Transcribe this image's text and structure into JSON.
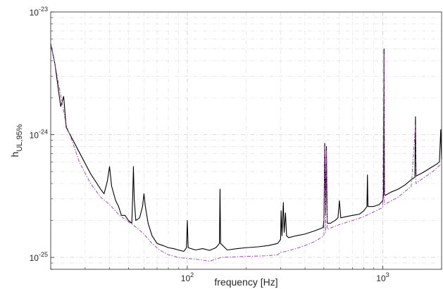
{
  "chart_data": {
    "type": "line",
    "title": "",
    "xlabel": "frequency [Hz]",
    "ylabel_main": "h",
    "ylabel_sub": "UL,95%",
    "xscale": "log",
    "yscale": "log",
    "xlim": [
      20,
      2000
    ],
    "ylim": [
      8e-26,
      1e-23
    ],
    "grid": true,
    "legend": "none",
    "x_ticks": [
      {
        "value": 100,
        "base": "10",
        "exp": "2"
      },
      {
        "value": 1000,
        "base": "10",
        "exp": "3"
      }
    ],
    "y_ticks": [
      {
        "value": 1e-25,
        "base": "10",
        "exp": "-25"
      },
      {
        "value": 1e-24,
        "base": "10",
        "exp": "-24"
      },
      {
        "value": 1e-23,
        "base": "10",
        "exp": "-23"
      }
    ],
    "series": [
      {
        "style": "solid",
        "color": "#000000",
        "points": [
          [
            20,
            5.5e-24
          ],
          [
            21,
            3.8e-24
          ],
          [
            22.5,
            1.7e-24
          ],
          [
            23.3,
            2.05e-24
          ],
          [
            24,
            1.15e-24
          ],
          [
            28,
            7.2e-25
          ],
          [
            32,
            4.8e-25
          ],
          [
            36,
            3.6e-25
          ],
          [
            37.5,
            3.3e-25
          ],
          [
            39,
            4.2e-25
          ],
          [
            40,
            5.5e-25
          ],
          [
            41,
            3.8e-25
          ],
          [
            43,
            2.9e-25
          ],
          [
            44.5,
            2.6e-25
          ],
          [
            46,
            2.2e-25
          ],
          [
            48,
            2.2e-25
          ],
          [
            50,
            2e-25
          ],
          [
            52,
            1.9e-25
          ],
          [
            52.5,
            3e-25
          ],
          [
            53,
            5.5e-25
          ],
          [
            53.5,
            3e-25
          ],
          [
            54.5,
            2e-25
          ],
          [
            57,
            2.1e-25
          ],
          [
            59,
            2.6e-25
          ],
          [
            60,
            3.3e-25
          ],
          [
            61,
            2.6e-25
          ],
          [
            63,
            1.9e-25
          ],
          [
            66,
            1.5e-25
          ],
          [
            70,
            1.3e-25
          ],
          [
            75,
            1.25e-25
          ],
          [
            80,
            1.2e-25
          ],
          [
            85,
            1.18e-25
          ],
          [
            90,
            1.15e-25
          ],
          [
            96,
            1.12e-25
          ],
          [
            99,
            1.2e-25
          ],
          [
            100,
            2e-25
          ],
          [
            101,
            1.2e-25
          ],
          [
            110,
            1.15e-25
          ],
          [
            120,
            1.18e-25
          ],
          [
            130,
            1.14e-25
          ],
          [
            140,
            1.2e-25
          ],
          [
            146,
            1.3e-25
          ],
          [
            147,
            3.6e-25
          ],
          [
            148,
            1.3e-25
          ],
          [
            160,
            1.15e-25
          ],
          [
            180,
            1.18e-25
          ],
          [
            200,
            1.2e-25
          ],
          [
            230,
            1.22e-25
          ],
          [
            260,
            1.25e-25
          ],
          [
            290,
            1.3e-25
          ],
          [
            300,
            1.4e-25
          ],
          [
            302,
            2.4e-25
          ],
          [
            305,
            1.5e-25
          ],
          [
            310,
            2.8e-25
          ],
          [
            313,
            1.6e-25
          ],
          [
            318,
            2.3e-25
          ],
          [
            322,
            1.5e-25
          ],
          [
            330,
            1.45e-25
          ],
          [
            360,
            1.5e-25
          ],
          [
            400,
            1.55e-25
          ],
          [
            450,
            1.65e-25
          ],
          [
            495,
            1.75e-25
          ],
          [
            500,
            2e-25
          ],
          [
            505,
            8.5e-25
          ],
          [
            510,
            2.2e-25
          ],
          [
            515,
            8e-25
          ],
          [
            520,
            1.9e-25
          ],
          [
            540,
            1.9e-25
          ],
          [
            570,
            2e-25
          ],
          [
            590,
            2.1e-25
          ],
          [
            600,
            2.9e-25
          ],
          [
            610,
            2.1e-25
          ],
          [
            650,
            2.15e-25
          ],
          [
            700,
            2.2e-25
          ],
          [
            760,
            2.25e-25
          ],
          [
            800,
            2.4e-25
          ],
          [
            830,
            2.6e-25
          ],
          [
            835,
            4.7e-25
          ],
          [
            840,
            2.6e-25
          ],
          [
            900,
            2.6e-25
          ],
          [
            960,
            2.7e-25
          ],
          [
            1000,
            2.9e-25
          ],
          [
            1010,
            3.3e-25
          ],
          [
            1015,
            5e-24
          ],
          [
            1020,
            3.3e-25
          ],
          [
            1030,
            3.2e-25
          ],
          [
            1100,
            3.4e-25
          ],
          [
            1200,
            3.6e-25
          ],
          [
            1300,
            3.9e-25
          ],
          [
            1400,
            4.3e-25
          ],
          [
            1460,
            4.5e-25
          ],
          [
            1470,
            1.4e-24
          ],
          [
            1480,
            4.6e-25
          ],
          [
            1600,
            4.9e-25
          ],
          [
            1700,
            5.2e-25
          ],
          [
            1800,
            5.5e-25
          ],
          [
            1900,
            5.8e-25
          ],
          [
            1950,
            6e-25
          ],
          [
            1980,
            1.1e-24
          ],
          [
            2000,
            6.3e-25
          ]
        ]
      },
      {
        "style": "dashed",
        "color": "#9b3fa8",
        "points": [
          [
            20,
            5.5e-24
          ],
          [
            21,
            3.8e-24
          ],
          [
            22.5,
            2.1e-24
          ],
          [
            24,
            1.2e-24
          ],
          [
            26,
            8.5e-25
          ],
          [
            28,
            6e-25
          ],
          [
            32,
            4e-25
          ],
          [
            36,
            3.1e-25
          ],
          [
            40,
            2.7e-25
          ],
          [
            45,
            2.2e-25
          ],
          [
            50,
            1.95e-25
          ],
          [
            55,
            1.75e-25
          ],
          [
            60,
            1.55e-25
          ],
          [
            66,
            1.3e-25
          ],
          [
            72,
            1.15e-25
          ],
          [
            80,
            1.05e-25
          ],
          [
            90,
            1e-25
          ],
          [
            100,
            9.8e-26
          ],
          [
            110,
            9.7e-26
          ],
          [
            120,
            9.5e-26
          ],
          [
            130,
            9.3e-26
          ],
          [
            140,
            9.7e-26
          ],
          [
            150,
            1e-25
          ],
          [
            170,
            1.01e-25
          ],
          [
            200,
            1.02e-25
          ],
          [
            250,
            1.03e-25
          ],
          [
            290,
            1.05e-25
          ],
          [
            300,
            1.1e-25
          ],
          [
            320,
            1.12e-25
          ],
          [
            360,
            1.18e-25
          ],
          [
            400,
            1.25e-25
          ],
          [
            450,
            1.35e-25
          ],
          [
            500,
            1.5e-25
          ],
          [
            505,
            8e-25
          ],
          [
            510,
            1.6e-25
          ],
          [
            515,
            7.5e-25
          ],
          [
            520,
            1.7e-25
          ],
          [
            600,
            1.85e-25
          ],
          [
            700,
            2e-25
          ],
          [
            800,
            2.15e-25
          ],
          [
            900,
            2.35e-25
          ],
          [
            1000,
            2.55e-25
          ],
          [
            1015,
            4.5e-24
          ],
          [
            1020,
            2.7e-25
          ],
          [
            1200,
            3.1e-25
          ],
          [
            1400,
            3.8e-25
          ],
          [
            1470,
            1.2e-24
          ],
          [
            1480,
            4e-25
          ],
          [
            1600,
            4.4e-25
          ],
          [
            1800,
            5e-25
          ],
          [
            2000,
            5.8e-25
          ]
        ]
      }
    ]
  }
}
